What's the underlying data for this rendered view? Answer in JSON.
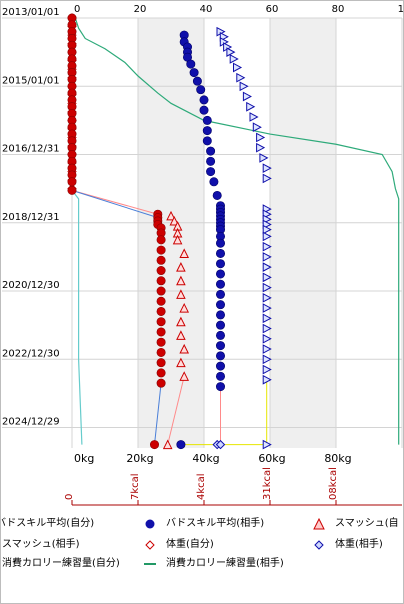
{
  "chart_data": {
    "type": "scatter",
    "y_axis_dates": [
      "2013/01/01",
      "2015/01/01",
      "2016/12/31",
      "2018/12/31",
      "2020/12/30",
      "2022/12/30",
      "2024/12/29"
    ],
    "top_axis_ticks": [
      "0",
      "20",
      "40",
      "60",
      "80",
      "10"
    ],
    "bottom_axis_ticks": [
      "0kg",
      "20kg",
      "40kg",
      "60kg",
      "80kg"
    ],
    "calorie_axis_ticks": [
      "0",
      "7kcal",
      "4kcal",
      "31kcal",
      "08kcal"
    ],
    "colors": {
      "red": "#cc0000",
      "blue": "#1010aa",
      "light_red": "#ff8a8a",
      "light_blue": "#4a7fd8",
      "yellow": "#e6e600",
      "teal": "#2eaa7a",
      "green": "#229966",
      "cyan": "#66cccc",
      "band": "#efefef",
      "grid": "#d4d4d4",
      "axis_red": "#aa0000"
    },
    "series": [
      {
        "name": "バドスキル平均(自分)",
        "marker": "circle-red",
        "axis": "top",
        "points": [
          [
            0,
            2013.0
          ],
          [
            0,
            2013.2
          ],
          [
            0,
            2013.4
          ],
          [
            0,
            2013.6
          ],
          [
            0,
            2013.8
          ],
          [
            0,
            2014.0
          ],
          [
            0,
            2014.2
          ],
          [
            0,
            2014.4
          ],
          [
            0,
            2014.6
          ],
          [
            0,
            2014.8
          ],
          [
            0,
            2015.0
          ],
          [
            0,
            2015.2
          ],
          [
            0,
            2015.4
          ],
          [
            0,
            2015.6
          ],
          [
            0,
            2015.8
          ],
          [
            0,
            2016.0
          ],
          [
            0,
            2016.2
          ],
          [
            0,
            2016.4
          ],
          [
            0,
            2016.6
          ],
          [
            0,
            2016.8
          ],
          [
            0,
            2017.0
          ],
          [
            0,
            2017.2
          ],
          [
            0,
            2017.4
          ],
          [
            0,
            2017.6
          ],
          [
            0,
            2017.8
          ],
          [
            0,
            2018.05
          ],
          [
            26,
            2018.75
          ],
          [
            26,
            2018.85
          ],
          [
            26,
            2018.95
          ],
          [
            26,
            2019.05
          ],
          [
            27,
            2019.15
          ],
          [
            27,
            2019.3
          ],
          [
            27,
            2019.5
          ],
          [
            27,
            2019.8
          ],
          [
            27,
            2020.1
          ],
          [
            27,
            2020.4
          ],
          [
            27,
            2020.7
          ],
          [
            27,
            2021.0
          ],
          [
            27,
            2021.3
          ],
          [
            27,
            2021.6
          ],
          [
            27,
            2021.9
          ],
          [
            27,
            2022.2
          ],
          [
            27,
            2022.5
          ],
          [
            27,
            2022.8
          ],
          [
            27,
            2023.1
          ],
          [
            27,
            2023.4
          ],
          [
            27,
            2023.7
          ],
          [
            25,
            2025.5
          ]
        ]
      },
      {
        "name": "バドスキル平均(相手)",
        "marker": "circle-blue",
        "axis": "top",
        "points": [
          [
            34,
            2013.5
          ],
          [
            34,
            2013.7
          ],
          [
            35,
            2013.85
          ],
          [
            35,
            2014.0
          ],
          [
            35,
            2014.15
          ],
          [
            36,
            2014.35
          ],
          [
            37,
            2014.6
          ],
          [
            38,
            2014.85
          ],
          [
            39,
            2015.1
          ],
          [
            40,
            2015.4
          ],
          [
            40,
            2015.7
          ],
          [
            41,
            2016.0
          ],
          [
            41,
            2016.3
          ],
          [
            41,
            2016.6
          ],
          [
            42,
            2016.9
          ],
          [
            42,
            2017.2
          ],
          [
            42,
            2017.5
          ],
          [
            43,
            2017.8
          ],
          [
            44,
            2018.2
          ],
          [
            45,
            2018.5
          ],
          [
            45,
            2018.6
          ],
          [
            45,
            2018.7
          ],
          [
            45,
            2018.8
          ],
          [
            45,
            2018.9
          ],
          [
            45,
            2019.0
          ],
          [
            45,
            2019.1
          ],
          [
            45,
            2019.2
          ],
          [
            45,
            2019.4
          ],
          [
            45,
            2019.6
          ],
          [
            45,
            2019.9
          ],
          [
            45,
            2020.2
          ],
          [
            45,
            2020.5
          ],
          [
            45,
            2020.8
          ],
          [
            45,
            2021.1
          ],
          [
            45,
            2021.4
          ],
          [
            45,
            2021.7
          ],
          [
            45,
            2022.0
          ],
          [
            45,
            2022.3
          ],
          [
            45,
            2022.6
          ],
          [
            45,
            2022.9
          ],
          [
            45,
            2023.2
          ],
          [
            45,
            2023.5
          ],
          [
            45,
            2023.8
          ],
          [
            33,
            2025.5
          ]
        ]
      },
      {
        "name": "スマッシュ(自分)",
        "marker": "triangle-red",
        "axis": "top",
        "points": [
          [
            30,
            2018.8
          ],
          [
            31,
            2018.95
          ],
          [
            32,
            2019.1
          ],
          [
            32,
            2019.3
          ],
          [
            32,
            2019.5
          ],
          [
            34,
            2019.9
          ],
          [
            33,
            2020.3
          ],
          [
            33,
            2020.7
          ],
          [
            33,
            2021.1
          ],
          [
            34,
            2021.5
          ],
          [
            33,
            2021.9
          ],
          [
            33,
            2022.3
          ],
          [
            34,
            2022.7
          ],
          [
            33,
            2023.1
          ],
          [
            34,
            2023.5
          ],
          [
            29,
            2025.5
          ]
        ]
      },
      {
        "name": "スマッシュ(相手)",
        "marker": "triangle-blue",
        "axis": "top",
        "points": [
          [
            45,
            2013.4
          ],
          [
            46,
            2013.55
          ],
          [
            46,
            2013.7
          ],
          [
            47,
            2013.85
          ],
          [
            48,
            2014.0
          ],
          [
            49,
            2014.2
          ],
          [
            50,
            2014.45
          ],
          [
            51,
            2014.75
          ],
          [
            52,
            2015.0
          ],
          [
            53,
            2015.3
          ],
          [
            54,
            2015.6
          ],
          [
            55,
            2015.9
          ],
          [
            56,
            2016.2
          ],
          [
            57,
            2016.5
          ],
          [
            57,
            2016.8
          ],
          [
            58,
            2017.1
          ],
          [
            59,
            2017.4
          ],
          [
            59,
            2017.7
          ],
          [
            59,
            2018.6
          ],
          [
            59,
            2018.75
          ],
          [
            59,
            2018.9
          ],
          [
            59,
            2019.05
          ],
          [
            59,
            2019.2
          ],
          [
            59,
            2019.4
          ],
          [
            59,
            2019.7
          ],
          [
            59,
            2020.0
          ],
          [
            59,
            2020.3
          ],
          [
            59,
            2020.6
          ],
          [
            59,
            2020.9
          ],
          [
            59,
            2021.2
          ],
          [
            59,
            2021.5
          ],
          [
            59,
            2021.8
          ],
          [
            59,
            2022.1
          ],
          [
            59,
            2022.4
          ],
          [
            59,
            2022.7
          ],
          [
            59,
            2023.0
          ],
          [
            59,
            2023.3
          ],
          [
            59,
            2023.6
          ],
          [
            59,
            2025.5
          ]
        ]
      },
      {
        "name": "体重(自分)",
        "marker": "diamond-red",
        "axis": "top",
        "points": [
          [
            0,
            2013.0
          ],
          [
            0,
            2013.25
          ],
          [
            0,
            2013.5
          ],
          [
            0,
            2013.75
          ],
          [
            0,
            2014.0
          ],
          [
            0,
            2014.25
          ],
          [
            0,
            2014.5
          ],
          [
            0,
            2014.75
          ],
          [
            0,
            2015.0
          ],
          [
            0,
            2015.25
          ],
          [
            0,
            2015.5
          ],
          [
            0,
            2015.75
          ],
          [
            0,
            2016.0
          ],
          [
            0,
            2016.25
          ],
          [
            0,
            2016.5
          ],
          [
            0,
            2016.75
          ],
          [
            0,
            2017.0
          ],
          [
            0,
            2017.25
          ],
          [
            0,
            2017.5
          ],
          [
            0,
            2017.75
          ],
          [
            0,
            2018.0
          ]
        ]
      },
      {
        "name": "体重(相手)",
        "marker": "diamond-blue",
        "axis": "top",
        "points": [
          [
            44,
            2025.5
          ],
          [
            45,
            2025.5
          ]
        ]
      },
      {
        "name": "消費カロリー練習量(自分)",
        "marker": "line-cyan",
        "axis": "calorie",
        "points": [
          [
            0,
            2013.0
          ],
          [
            0,
            2018.05
          ],
          [
            2,
            2018.3
          ],
          [
            2,
            2019.0
          ],
          [
            2,
            2021.0
          ],
          [
            2,
            2023.0
          ],
          [
            3,
            2025.5
          ]
        ]
      },
      {
        "name": "消費カロリー練習量(相手)",
        "marker": "line-green",
        "axis": "calorie",
        "points": [
          [
            1,
            2013.0
          ],
          [
            2,
            2013.3
          ],
          [
            4,
            2013.6
          ],
          [
            10,
            2013.9
          ],
          [
            16,
            2014.3
          ],
          [
            20,
            2014.7
          ],
          [
            26,
            2015.2
          ],
          [
            30,
            2015.5
          ],
          [
            40,
            2016.0
          ],
          [
            60,
            2016.4
          ],
          [
            80,
            2016.7
          ],
          [
            94,
            2017.0
          ],
          [
            97,
            2017.5
          ],
          [
            98,
            2018.0
          ],
          [
            99,
            2018.3
          ],
          [
            99,
            2020.0
          ],
          [
            99,
            2022.0
          ],
          [
            99,
            2025.5
          ]
        ]
      }
    ],
    "legend": [
      [
        "バドスキル平均(自分)",
        "バドスキル平均(相手)",
        "スマッシュ(自"
      ],
      [
        "スマッシュ(相手)",
        "体重(自分)",
        "体重(相手)"
      ],
      [
        "消費カロリー練習量(自分)",
        "消費カロリー練習量(相手)"
      ]
    ]
  }
}
